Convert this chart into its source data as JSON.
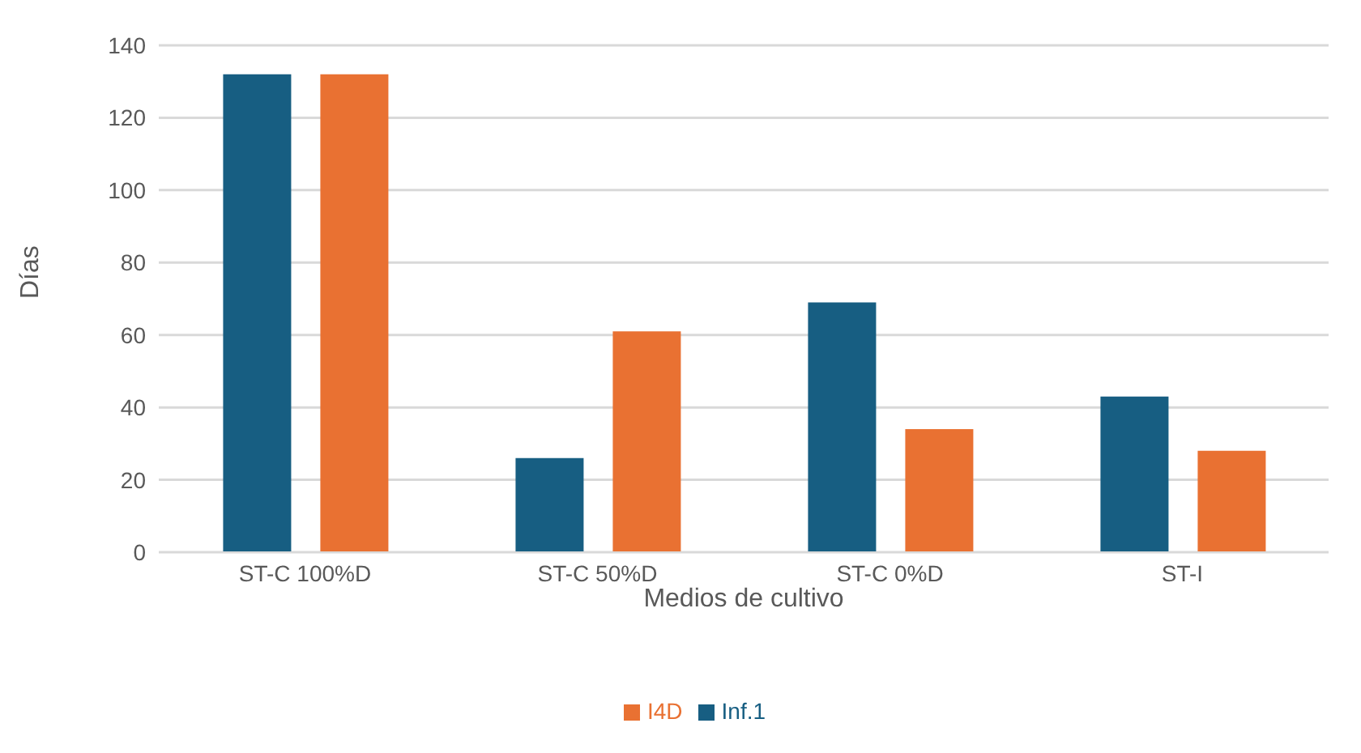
{
  "chart_data": {
    "type": "bar",
    "xlabel": "Medios de cultivo",
    "ylabel": "Días",
    "categories": [
      "ST-C 100%D",
      "ST-C 50%D",
      "ST-C  0%D",
      "ST-I"
    ],
    "series": [
      {
        "name": "Inf.1",
        "color": "#175e82",
        "values": [
          132,
          26,
          69,
          43
        ]
      },
      {
        "name": "I4D",
        "color": "#e97132",
        "values": [
          132,
          61,
          34,
          28
        ]
      }
    ],
    "ylim": [
      0,
      140
    ],
    "yticks": [
      0,
      20,
      40,
      60,
      80,
      100,
      120,
      140
    ],
    "grid": "y",
    "legend": "bottom"
  }
}
